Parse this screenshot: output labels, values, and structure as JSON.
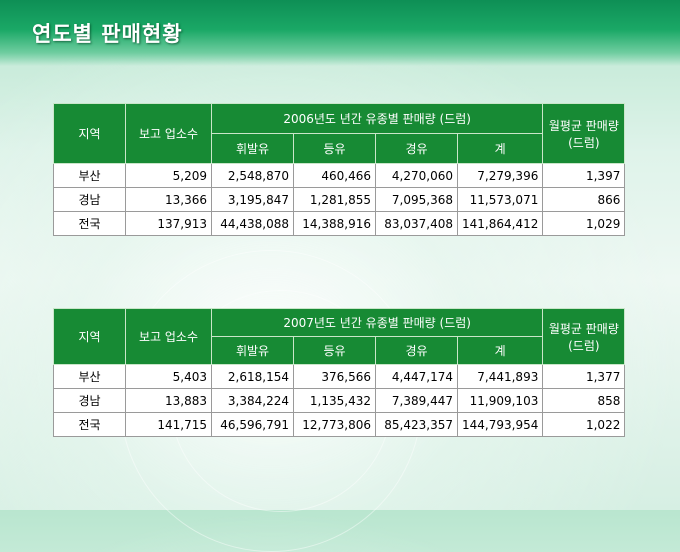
{
  "title": "연도별 판매현황",
  "tables": [
    {
      "year_header": "2006년도 년간 유종별 판매량 (드럼)",
      "col_region": "지역",
      "col_count": "보고 업소수",
      "col_diesel": "휘발유",
      "col_kerosene": "등유",
      "col_light": "경유",
      "col_total": "계",
      "col_monthly": "월평균 판매량(드럼)",
      "rows": [
        {
          "region": "부산",
          "count": "5,209",
          "diesel": "2,548,870",
          "kerosene": "460,466",
          "light": "4,270,060",
          "total": "7,279,396",
          "monthly": "1,397"
        },
        {
          "region": "경남",
          "count": "13,366",
          "diesel": "3,195,847",
          "kerosene": "1,281,855",
          "light": "7,095,368",
          "total": "11,573,071",
          "monthly": "866"
        },
        {
          "region": "전국",
          "count": "137,913",
          "diesel": "44,438,088",
          "kerosene": "14,388,916",
          "light": "83,037,408",
          "total": "141,864,412",
          "monthly": "1,029"
        }
      ]
    },
    {
      "year_header": "2007년도 년간 유종별 판매량 (드럼)",
      "col_region": "지역",
      "col_count": "보고 업소수",
      "col_diesel": "휘발유",
      "col_kerosene": "등유",
      "col_light": "경유",
      "col_total": "계",
      "col_monthly": "월평균 판매량(드럼)",
      "rows": [
        {
          "region": "부산",
          "count": "5,403",
          "diesel": "2,618,154",
          "kerosene": "376,566",
          "light": "4,447,174",
          "total": "7,441,893",
          "monthly": "1,377"
        },
        {
          "region": "경남",
          "count": "13,883",
          "diesel": "3,384,224",
          "kerosene": "1,135,432",
          "light": "7,389,447",
          "total": "11,909,103",
          "monthly": "858"
        },
        {
          "region": "전국",
          "count": "141,715",
          "diesel": "46,596,791",
          "kerosene": "12,773,806",
          "light": "85,423,357",
          "total": "144,793,954",
          "monthly": "1,022"
        }
      ]
    }
  ]
}
